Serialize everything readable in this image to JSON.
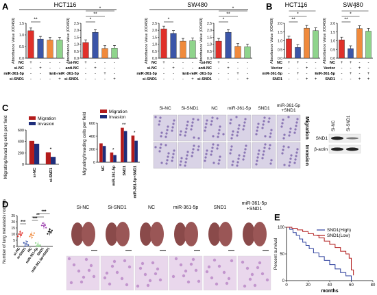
{
  "colors": {
    "red": "#e0302a",
    "blue": "#3b55a8",
    "orange": "#f08a3c",
    "green": "#8fd48c",
    "navy": "#1e2d7a",
    "darkred": "#b31b1b",
    "black": "#111111",
    "magenta": "#a24ab2",
    "survival_high": "#2a3d9c",
    "survival_low": "#b01a1a"
  },
  "panel_letters": {
    "a": "A",
    "b": "B",
    "c": "C",
    "d": "D",
    "e": "E"
  },
  "panel_a": {
    "title_left": "HCT116",
    "title_right": "SW480",
    "ylabel": "Absorbance Value (OD450)",
    "charts": [
      {
        "values": [
          1.18,
          0.82,
          0.78,
          0.78
        ],
        "colors": [
          "red",
          "blue",
          "orange",
          "green"
        ],
        "ylim": [
          0,
          1.5
        ],
        "ticks": [
          "0.0",
          "0.5",
          "1.0",
          "1.5"
        ],
        "rows": [
          {
            "label": "NC",
            "signs": [
              "+",
              "-",
              "-",
              "-"
            ]
          },
          {
            "label": "si-NC",
            "signs": [
              "-",
              "+",
              "-",
              "-"
            ]
          },
          {
            "label": "miR-361-5p",
            "signs": [
              "-",
              "-",
              "+",
              "-"
            ]
          },
          {
            "label": "si-SND1",
            "signs": [
              "-",
              "-",
              "-",
              "+"
            ]
          }
        ],
        "sig": [
          "**"
        ]
      },
      {
        "values": [
          1.12,
          1.85,
          0.7,
          0.72
        ],
        "colors": [
          "red",
          "blue",
          "orange",
          "green"
        ],
        "ylim": [
          0,
          2.5
        ],
        "ticks": [
          "0.0",
          "0.5",
          "1.0",
          "1.5",
          "2.0",
          "2.5"
        ],
        "rows": [
          {
            "label": "si-NC",
            "signs": [
              "+",
              "-",
              "-",
              "-"
            ]
          },
          {
            "label": "anti-NC",
            "signs": [
              "-",
              "+",
              "-",
              "-"
            ]
          },
          {
            "label": "anti-miR -361-5p",
            "signs": [
              "-",
              "-",
              "+",
              "-"
            ]
          },
          {
            "label": "si-SND1",
            "signs": [
              "-",
              "-",
              "-",
              "+"
            ]
          }
        ],
        "sig": [
          "*",
          "**",
          "*"
        ]
      },
      {
        "values": [
          2.1,
          1.78,
          1.22,
          1.25
        ],
        "colors": [
          "red",
          "blue",
          "orange",
          "green"
        ],
        "ylim": [
          0,
          2.5
        ],
        "ticks": [
          "0.0",
          "0.5",
          "1.0",
          "1.5",
          "2.0",
          "2.5"
        ],
        "rows": [
          {
            "label": "NC",
            "signs": [
              "+",
              "-",
              "-",
              "-"
            ]
          },
          {
            "label": "si-NC",
            "signs": [
              "-",
              "+",
              "-",
              "-"
            ]
          },
          {
            "label": "miR-361-5p",
            "signs": [
              "-",
              "-",
              "+",
              "-"
            ]
          },
          {
            "label": "si-SND1",
            "signs": [
              "-",
              "-",
              "-",
              "+"
            ]
          }
        ],
        "sig": [
          "*"
        ]
      },
      {
        "values": [
          1.22,
          1.85,
          0.85,
          0.82
        ],
        "colors": [
          "red",
          "blue",
          "orange",
          "green"
        ],
        "ylim": [
          0,
          2.5
        ],
        "ticks": [
          "0.0",
          "0.5",
          "1.0",
          "1.5",
          "2.0",
          "2.5"
        ],
        "rows": [
          {
            "label": "si-NC",
            "signs": [
              "+",
              "-",
              "-",
              "-"
            ]
          },
          {
            "label": "anti-NC",
            "signs": [
              "-",
              "+",
              "-",
              "-"
            ]
          },
          {
            "label": "anti-miR -361-5p",
            "signs": [
              "-",
              "-",
              "+",
              "-"
            ]
          },
          {
            "label": "si-SND1",
            "signs": [
              "-",
              "-",
              "-",
              "+"
            ]
          }
        ],
        "sig": [
          "*",
          "**",
          "*"
        ]
      }
    ]
  },
  "panel_b": {
    "title_left": "HCT116",
    "title_right": "SW480",
    "ylabel": "Absorbance Value (OD450)",
    "charts": [
      {
        "values": [
          1.1,
          0.62,
          1.72,
          1.58
        ],
        "colors": [
          "red",
          "blue",
          "orange",
          "green"
        ],
        "ylim": [
          0,
          2.0
        ],
        "ticks": [
          "0.0",
          "0.5",
          "1.0",
          "1.5",
          "2.0"
        ],
        "rows": [
          {
            "label": "NC",
            "signs": [
              "+",
              "+",
              "-",
              "-"
            ]
          },
          {
            "label": "Vector",
            "signs": [
              "-",
              "-",
              "+",
              "-"
            ]
          },
          {
            "label": "miR-361-5p",
            "signs": [
              "-",
              "+",
              "-",
              "+"
            ]
          },
          {
            "label": "SND1",
            "signs": [
              "-",
              "-",
              "+",
              "+"
            ]
          }
        ],
        "sig": [
          "**",
          "*",
          "*"
        ]
      },
      {
        "values": [
          1.05,
          0.55,
          1.7,
          1.55
        ],
        "colors": [
          "red",
          "blue",
          "orange",
          "green"
        ],
        "ylim": [
          0,
          2.0
        ],
        "ticks": [
          "0.0",
          "0.5",
          "1.0",
          "1.5",
          "2.0"
        ],
        "rows": [
          {
            "label": "NC",
            "signs": [
              "+",
              "+",
              "-",
              "-"
            ]
          },
          {
            "label": "Vector",
            "signs": [
              "-",
              "-",
              "+",
              "-"
            ]
          },
          {
            "label": "miR-361-5p",
            "signs": [
              "-",
              "+",
              "-",
              "+"
            ]
          },
          {
            "label": "SND1",
            "signs": [
              "-",
              "-",
              "+",
              "+"
            ]
          }
        ],
        "sig": [
          "**",
          "*",
          "*"
        ]
      }
    ]
  },
  "panel_c": {
    "ylabel": "Migrating/Invading cells per field",
    "legend": [
      "Migration",
      "Invasion"
    ],
    "chart1": {
      "categories": [
        "si-NC",
        "si-SND1"
      ],
      "migration": [
        410,
        210
      ],
      "invasion": [
        360,
        130
      ],
      "ylim": [
        0,
        600
      ],
      "ticks": [
        "0",
        "200",
        "400",
        "600"
      ],
      "sig": [
        "*",
        "*"
      ]
    },
    "chart2": {
      "categories": [
        "NC",
        "miR-361-5p",
        "SND1",
        "miR-361-5p+SND1"
      ],
      "migration": [
        290,
        150,
        530,
        410
      ],
      "invasion": [
        250,
        110,
        480,
        330
      ],
      "ylim": [
        0,
        600
      ],
      "ticks": [
        "0",
        "200",
        "400",
        "600"
      ],
      "sig": [
        "*",
        "**",
        "*"
      ]
    },
    "image_cols": [
      "Si-NC",
      "Si-SND1",
      "NC",
      "miR-361-5p",
      "SND1",
      "miR-361-5p +SND1"
    ],
    "image_rows": [
      "Migration",
      "Invasion"
    ],
    "blot_cols": [
      "Si-NC",
      "Si-SND1"
    ],
    "blot_rows": [
      "SND1",
      "β-actin"
    ]
  },
  "panel_d": {
    "ylabel": "Number of lung metastasis nodules",
    "categories": [
      "si-NC",
      "si-SND1",
      "NC",
      "miR-361-5p",
      "SND1",
      "miR-361-5p+SND1"
    ],
    "means": [
      10,
      2,
      9,
      1,
      17,
      12
    ],
    "ylim": [
      0,
      25
    ],
    "ticks": [
      "0",
      "5",
      "10",
      "15",
      "20",
      "25"
    ],
    "sig": [
      "***",
      "***",
      "**",
      "***"
    ],
    "image_cols": [
      "Si-NC",
      "Si-SND1",
      "NC",
      "miR-361-5p",
      "SND1",
      "miR-361-5p +SND1"
    ]
  },
  "panel_e": {
    "xlabel": "months",
    "ylabel": "Percent survival",
    "xticks": [
      "0",
      "20",
      "40",
      "60",
      "80"
    ],
    "yticks": [
      "0",
      "50",
      "100"
    ],
    "legend": [
      "SND1(High)",
      "SND1(Low)"
    ],
    "high": [
      [
        0,
        100
      ],
      [
        3,
        96
      ],
      [
        6,
        90
      ],
      [
        9,
        85
      ],
      [
        12,
        78
      ],
      [
        15,
        72
      ],
      [
        18,
        66
      ],
      [
        21,
        60
      ],
      [
        25,
        52
      ],
      [
        30,
        45
      ],
      [
        35,
        38
      ],
      [
        40,
        30
      ],
      [
        45,
        22
      ],
      [
        50,
        15
      ],
      [
        55,
        9
      ],
      [
        60,
        0
      ]
    ],
    "low": [
      [
        0,
        100
      ],
      [
        5,
        98
      ],
      [
        10,
        95
      ],
      [
        15,
        92
      ],
      [
        20,
        88
      ],
      [
        25,
        85
      ],
      [
        30,
        80
      ],
      [
        35,
        74
      ],
      [
        40,
        68
      ],
      [
        45,
        62
      ],
      [
        50,
        55
      ],
      [
        55,
        50
      ],
      [
        58,
        42
      ],
      [
        60,
        20
      ],
      [
        62,
        10
      ]
    ]
  }
}
